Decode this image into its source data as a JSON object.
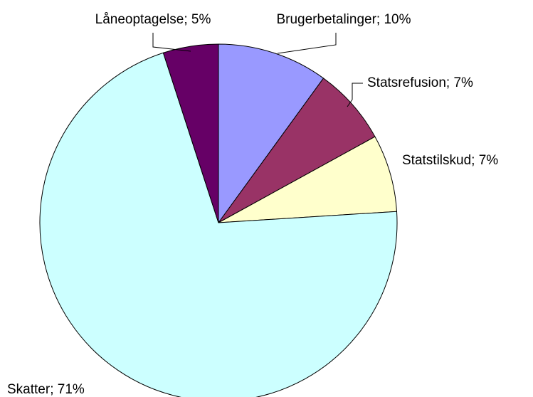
{
  "chart_data": {
    "type": "pie",
    "values": [
      10,
      7,
      7,
      71,
      5
    ],
    "value_labels": [
      "Brugerbetalinger; 10%",
      "Statsrefusion; 7%",
      "Statstilskud; 7%",
      "Skatter; 71%",
      "Låneoptagelse; 5%"
    ],
    "colors": [
      "#9999ff",
      "#993366",
      "#ffffcc",
      "#ccffff",
      "#660066"
    ]
  }
}
